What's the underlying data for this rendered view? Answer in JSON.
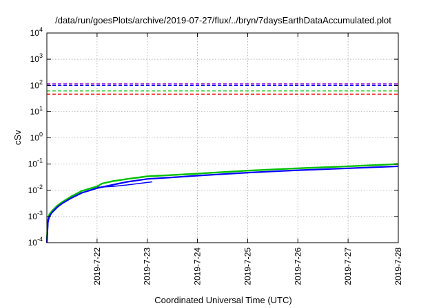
{
  "chart_data": {
    "type": "line",
    "title": "/data/run/goesPlots/archive/2019-07-27/flux/../bryn/7daysEarthDataAccumulated.plot",
    "xlabel": "Coordinated Universal Time (UTC)",
    "ylabel": "cSv",
    "yscale": "log",
    "ylim": [
      0.0001,
      10000
    ],
    "xlim": [
      "2019-7-21",
      "2019-7-28"
    ],
    "grid": true,
    "legend": "none",
    "x_ticks": [
      "2019-7-22",
      "2019-7-23",
      "2019-7-24",
      "2019-7-25",
      "2019-7-26",
      "2019-7-27",
      "2019-7-28"
    ],
    "y_ticks": [
      {
        "value": 0.0001,
        "base": "10",
        "exp": "-4"
      },
      {
        "value": 0.001,
        "base": "10",
        "exp": "-3"
      },
      {
        "value": 0.01,
        "base": "10",
        "exp": "-2"
      },
      {
        "value": 0.1,
        "base": "10",
        "exp": "-1"
      },
      {
        "value": 1,
        "base": "10",
        "exp": "0"
      },
      {
        "value": 10,
        "base": "10",
        "exp": "1"
      },
      {
        "value": 100,
        "base": "10",
        "exp": "2"
      },
      {
        "value": 1000,
        "base": "10",
        "exp": "3"
      },
      {
        "value": 10000,
        "base": "10",
        "exp": "4"
      }
    ],
    "thresholds": [
      {
        "color": "#9400d3",
        "value": 115
      },
      {
        "color": "#0000ff",
        "value": 100
      },
      {
        "color": "#00c000",
        "value": 62
      },
      {
        "color": "#ff0000",
        "value": 46
      }
    ],
    "series": [
      {
        "color": "#00c000",
        "width": 2.4,
        "x": [
          0.0,
          0.02,
          0.05,
          0.1,
          0.2,
          0.3,
          0.5,
          0.7,
          1.0,
          1.1,
          1.3,
          1.6,
          2.0,
          2.5,
          3.0,
          4.0,
          5.0,
          6.0,
          7.0
        ],
        "y": [
          0.00012,
          0.0007,
          0.0012,
          0.0016,
          0.0025,
          0.0035,
          0.006,
          0.0095,
          0.014,
          0.018,
          0.022,
          0.027,
          0.034,
          0.038,
          0.043,
          0.056,
          0.069,
          0.082,
          0.1
        ]
      },
      {
        "color": "#0000ff",
        "width": 2.2,
        "x": [
          0.0,
          0.02,
          0.05,
          0.1,
          0.2,
          0.3,
          0.5,
          0.7,
          1.0,
          1.3,
          1.6,
          2.0,
          2.5,
          3.0,
          4.0,
          5.0,
          6.0,
          7.0
        ],
        "y": [
          0.0001,
          0.0006,
          0.001,
          0.0014,
          0.0022,
          0.0031,
          0.0052,
          0.008,
          0.012,
          0.016,
          0.021,
          0.027,
          0.031,
          0.036,
          0.047,
          0.058,
          0.069,
          0.082
        ]
      },
      {
        "color": "#0000ff",
        "width": 1.5,
        "x": [
          1.0,
          1.3,
          1.6,
          2.1
        ],
        "y": [
          0.013,
          0.014,
          0.016,
          0.021
        ]
      }
    ]
  }
}
